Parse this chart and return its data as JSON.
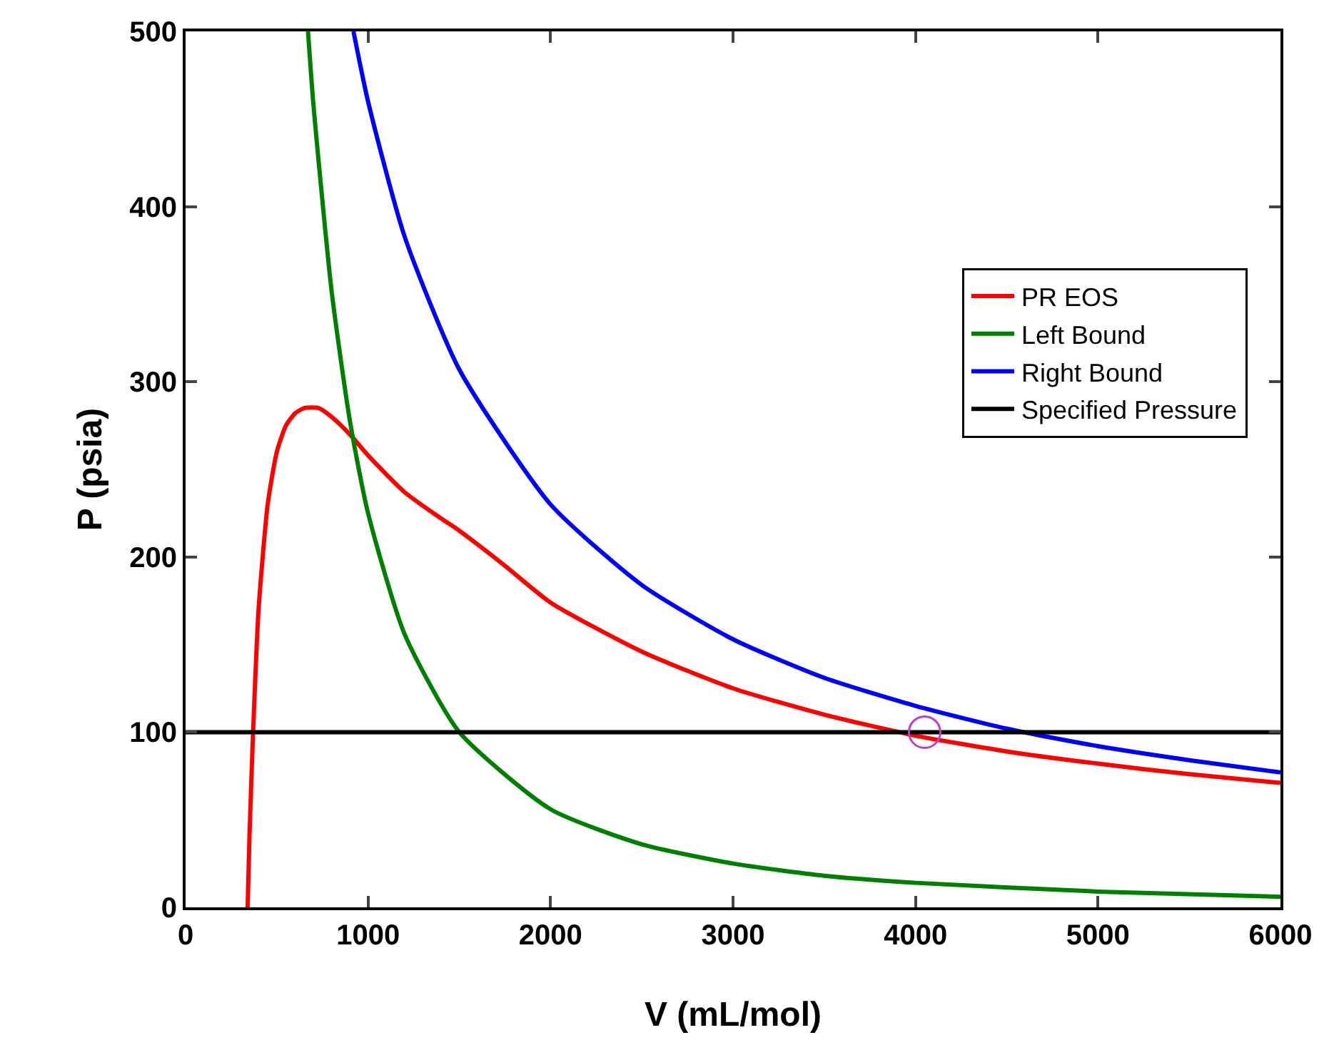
{
  "chart_data": {
    "type": "line",
    "xlabel": "V (mL/mol)",
    "ylabel": "P (psia)",
    "xlim": [
      0,
      6000
    ],
    "xticks": [
      0,
      1000,
      2000,
      3000,
      4000,
      5000,
      6000
    ],
    "ylim": [
      0,
      500
    ],
    "yticks": [
      0,
      100,
      200,
      300,
      400,
      500
    ],
    "grid": false,
    "legend": "top right",
    "series": [
      {
        "name": "PR EOS",
        "color": "#ff0000",
        "x": [
          340,
          350,
          370,
          400,
          450,
          500,
          550,
          600,
          650,
          730,
          800,
          900,
          1000,
          1200,
          1400,
          1500,
          1750,
          2000,
          2500,
          3000,
          3500,
          4000,
          4500,
          5000,
          5500,
          6000
        ],
        "values": [
          0,
          40,
          100,
          170,
          230,
          260,
          275,
          282,
          285,
          285,
          280,
          270,
          258,
          237,
          222,
          215,
          195,
          174,
          146,
          125,
          110,
          98,
          89,
          82,
          76,
          71
        ]
      },
      {
        "name": "Left Bound",
        "color": "#008000",
        "x": [
          671,
          700,
          800,
          900,
          1000,
          1200,
          1500,
          2000,
          2500,
          3000,
          3500,
          4000,
          5000,
          6000
        ],
        "values": [
          500,
          459,
          352,
          278,
          225,
          156,
          100,
          56,
          36,
          25,
          18,
          14,
          9,
          6
        ]
      },
      {
        "name": "Right Bound",
        "color": "#0000ff",
        "x": [
          920,
          1000,
          1200,
          1500,
          2000,
          2500,
          3000,
          3500,
          4000,
          4500,
          5000,
          5500,
          6000
        ],
        "values": [
          500,
          460,
          383,
          307,
          230,
          184,
          153,
          131,
          115,
          102,
          92,
          84,
          77
        ]
      },
      {
        "name": "Specified Pressure",
        "color": "#000000",
        "x": [
          0,
          6000
        ],
        "values": [
          100,
          100
        ]
      },
      {
        "type": "scatter",
        "marker": "circle",
        "color": "#c040c0",
        "x": [
          4050
        ],
        "values": [
          100
        ]
      }
    ]
  }
}
